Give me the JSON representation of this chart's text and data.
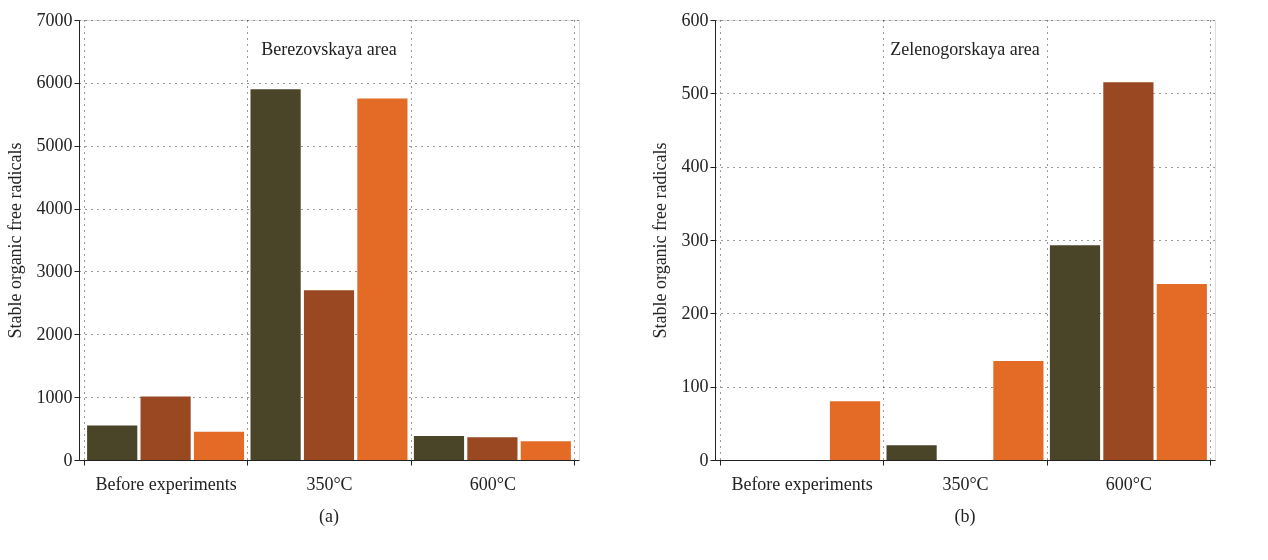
{
  "chart_data": [
    {
      "type": "bar",
      "title": "Berezovskaya area",
      "ylabel": "Stable organic free radicals",
      "categories": [
        "Before experiments",
        "350°C",
        "600°C"
      ],
      "series": [
        {
          "color": "#4a4428",
          "values": [
            550,
            5900,
            380
          ]
        },
        {
          "color": "#994822",
          "values": [
            1010,
            2700,
            360
          ]
        },
        {
          "color": "#e36b26",
          "values": [
            450,
            5750,
            300
          ]
        }
      ],
      "ylim": [
        0,
        7000
      ],
      "yticks": [
        0,
        1000,
        2000,
        3000,
        4000,
        5000,
        6000,
        7000
      ],
      "grid": true,
      "annotations": [
        "(a)"
      ]
    },
    {
      "type": "bar",
      "title": "Zelenogorskaya area",
      "ylabel": "Stable organic free radicals",
      "categories": [
        "Before experiments",
        "350°C",
        "600°C"
      ],
      "series": [
        {
          "color": "#4a4428",
          "values": [
            0,
            20,
            293
          ]
        },
        {
          "color": "#994822",
          "values": [
            0,
            0,
            515
          ]
        },
        {
          "color": "#e36b26",
          "values": [
            80,
            135,
            240
          ]
        }
      ],
      "ylim": [
        0,
        600
      ],
      "yticks": [
        0,
        100,
        200,
        300,
        400,
        500,
        600
      ],
      "grid": true,
      "annotations": [
        "(b)"
      ]
    }
  ]
}
